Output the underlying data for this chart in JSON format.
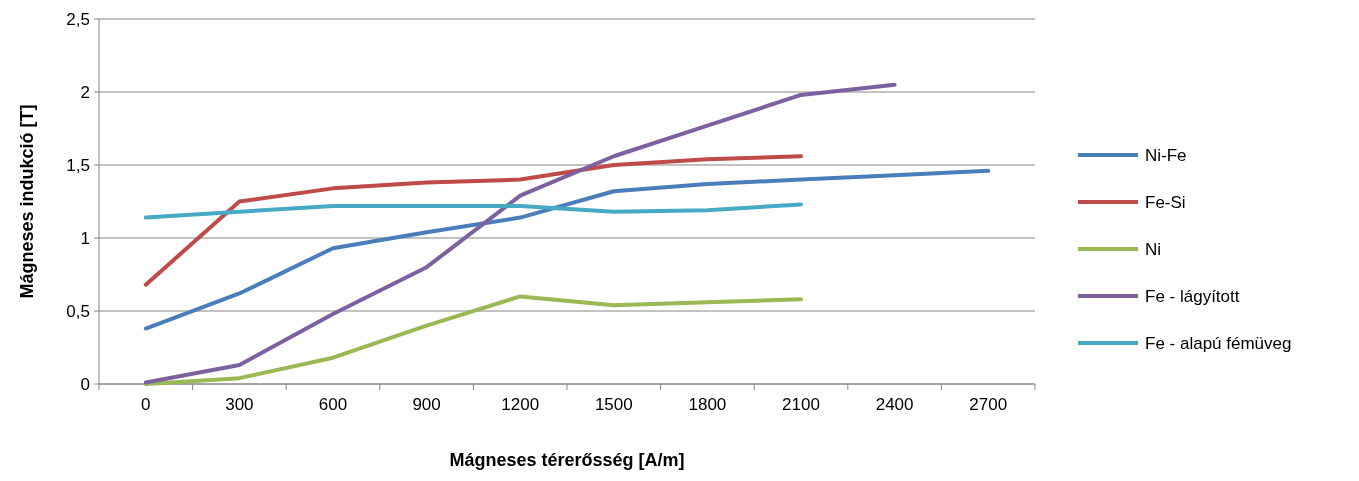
{
  "chart_data": {
    "type": "line",
    "xlabel": "Mágneses térerősség [A/m]",
    "ylabel": "Mágneses indukció [T]",
    "categories": [
      "0",
      "300",
      "600",
      "900",
      "1200",
      "1500",
      "1800",
      "2100",
      "2400",
      "2700"
    ],
    "series": [
      {
        "name": "Ni-Fe",
        "color": "#4a7ebb",
        "values": [
          0.38,
          0.62,
          0.93,
          1.04,
          1.14,
          1.32,
          1.37,
          1.4,
          1.43,
          1.46
        ]
      },
      {
        "name": "Fe-Si",
        "color": "#be4b48",
        "values": [
          0.68,
          1.25,
          1.34,
          1.38,
          1.4,
          1.5,
          1.54,
          1.56,
          null,
          null
        ]
      },
      {
        "name": "Ni",
        "color": "#98b954",
        "values": [
          0,
          0.04,
          0.18,
          0.4,
          0.6,
          0.54,
          0.56,
          0.58,
          null,
          null
        ]
      },
      {
        "name": "Fe - lágyított",
        "color": "#7d60a0",
        "values": [
          0.01,
          0.13,
          0.48,
          0.8,
          1.29,
          1.56,
          1.77,
          1.98,
          2.05,
          null
        ]
      },
      {
        "name": "Fe - alapú fémüveg",
        "color": "#46aac5",
        "values": [
          1.14,
          1.18,
          1.22,
          1.22,
          1.22,
          1.18,
          1.19,
          1.23,
          null,
          null
        ]
      }
    ],
    "ylim": [
      0,
      2.5
    ],
    "yticks": [
      0,
      {
        "value": 0.5,
        "label": "0,5"
      },
      1,
      {
        "value": 1.5,
        "label": "1,5"
      },
      2,
      {
        "value": 2.5,
        "label": "2,5"
      }
    ],
    "grid": "y",
    "legend": "right",
    "marker": "none",
    "line_style": "solid"
  }
}
